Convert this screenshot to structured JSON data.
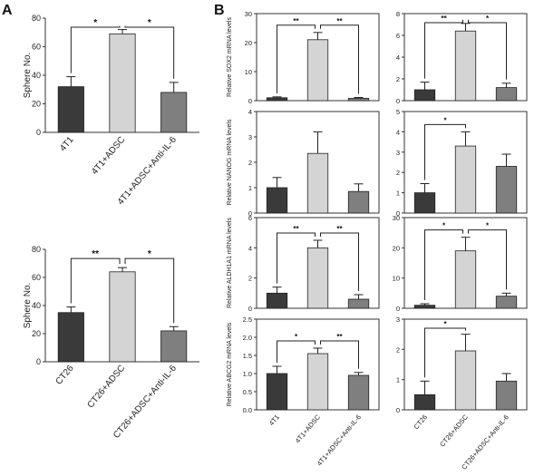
{
  "panel_labels": {
    "a": "A",
    "b": "B"
  },
  "colors": {
    "dark": "#3a3a3a",
    "light": "#d4d4d4",
    "medium": "#7f7f7f"
  },
  "chart_data": [
    {
      "id": "a_4t1",
      "type": "bar",
      "title": "",
      "xlabel": "",
      "ylabel": "Sphere No.",
      "categories": [
        "4T1",
        "4T1+ADSC",
        "4T1+ADSC+Anti-IL-6"
      ],
      "values": [
        32,
        69,
        28
      ],
      "errors": [
        7,
        3,
        7
      ],
      "ylim": [
        0,
        80
      ],
      "yticks": [
        0,
        20,
        40,
        60,
        80
      ],
      "significance": [
        {
          "from": 0,
          "to": 1,
          "label": "*"
        },
        {
          "from": 1,
          "to": 2,
          "label": "*"
        }
      ]
    },
    {
      "id": "a_ct26",
      "type": "bar",
      "title": "",
      "xlabel": "",
      "ylabel": "Sphere No.",
      "categories": [
        "CT26",
        "CT26+ADSC",
        "CT26+ADSC+Anti-IL-6"
      ],
      "values": [
        35,
        64,
        22
      ],
      "errors": [
        4,
        3,
        3
      ],
      "ylim": [
        0,
        80
      ],
      "yticks": [
        0,
        20,
        40,
        60,
        80
      ],
      "significance": [
        {
          "from": 0,
          "to": 1,
          "label": "**"
        },
        {
          "from": 1,
          "to": 2,
          "label": "*"
        }
      ]
    },
    {
      "id": "b_sox2_4t1",
      "type": "bar",
      "ylabel": "Relative SOX2 mRNA levels",
      "categories": [
        "4T1",
        "4T1+ADSC",
        "4T1+ADSC+Anti-IL-6"
      ],
      "values": [
        1,
        21,
        0.8
      ],
      "errors": [
        0.3,
        2.5,
        0.3
      ],
      "ylim": [
        0,
        30
      ],
      "yticks": [
        0,
        10,
        20,
        30
      ],
      "significance": [
        {
          "from": 0,
          "to": 1,
          "label": "**"
        },
        {
          "from": 1,
          "to": 2,
          "label": "**"
        }
      ]
    },
    {
      "id": "b_sox2_ct26",
      "type": "bar",
      "ylabel": "",
      "categories": [
        "CT26",
        "CT26+ADSC",
        "CT26+ADSC+Anti-IL-6"
      ],
      "values": [
        1,
        6.4,
        1.2
      ],
      "errors": [
        0.7,
        0.7,
        0.4
      ],
      "ylim": [
        0,
        8
      ],
      "yticks": [
        0,
        2,
        4,
        6,
        8
      ],
      "significance": [
        {
          "from": 0,
          "to": 1,
          "label": "**"
        },
        {
          "from": 1,
          "to": 2,
          "label": "*"
        }
      ]
    },
    {
      "id": "b_nanog_4t1",
      "type": "bar",
      "ylabel": "Relative NANOG mRNA levels",
      "categories": [
        "4T1",
        "4T1+ADSC",
        "4T1+ADSC+Anti-IL-6"
      ],
      "values": [
        1,
        2.35,
        0.85
      ],
      "errors": [
        0.4,
        0.85,
        0.3
      ],
      "ylim": [
        0,
        4
      ],
      "yticks": [
        0,
        1,
        2,
        3,
        4
      ],
      "significance": []
    },
    {
      "id": "b_nanog_ct26",
      "type": "bar",
      "ylabel": "",
      "categories": [
        "CT26",
        "CT26+ADSC",
        "CT26+ADSC+Anti-IL-6"
      ],
      "values": [
        1,
        3.3,
        2.3
      ],
      "errors": [
        0.45,
        0.7,
        0.6
      ],
      "ylim": [
        0,
        5
      ],
      "yticks": [
        0,
        1,
        2,
        3,
        4,
        5
      ],
      "significance": [
        {
          "from": 0,
          "to": 1,
          "label": "*"
        }
      ]
    },
    {
      "id": "b_aldh_4t1",
      "type": "bar",
      "ylabel": "Relative ALDH1A1 mRNA levels",
      "categories": [
        "4T1",
        "4T1+ADSC",
        "4T1+ADSC+Anti-IL-6"
      ],
      "values": [
        1,
        4,
        0.6
      ],
      "errors": [
        0.4,
        0.5,
        0.3
      ],
      "ylim": [
        0,
        6
      ],
      "yticks": [
        0,
        2,
        4,
        6
      ],
      "significance": [
        {
          "from": 0,
          "to": 1,
          "label": "**"
        },
        {
          "from": 1,
          "to": 2,
          "label": "**"
        }
      ]
    },
    {
      "id": "b_aldh_ct26",
      "type": "bar",
      "ylabel": "",
      "categories": [
        "CT26",
        "CT26+ADSC",
        "CT26+ADSC+Anti-IL-6"
      ],
      "values": [
        1,
        19,
        4
      ],
      "errors": [
        0.5,
        4.5,
        1
      ],
      "ylim": [
        0,
        30
      ],
      "yticks": [
        0,
        10,
        20,
        30
      ],
      "significance": [
        {
          "from": 0,
          "to": 1,
          "label": "*"
        },
        {
          "from": 1,
          "to": 2,
          "label": "*"
        }
      ]
    },
    {
      "id": "b_abcg2_4t1",
      "type": "bar",
      "ylabel": "Relative ABCG2 mRNA levels",
      "categories": [
        "4T1",
        "4T1+ADSC",
        "4T1+ADSC+Anti-IL-6"
      ],
      "values": [
        1,
        1.55,
        0.95
      ],
      "errors": [
        0.2,
        0.15,
        0.08
      ],
      "ylim": [
        0,
        2.5
      ],
      "yticks": [
        0,
        0.5,
        1,
        1.5,
        2,
        2.5
      ],
      "yticklabels": [
        "0.0",
        "0.5",
        "1.0",
        "1.5",
        "2.0",
        "2.5"
      ],
      "significance": [
        {
          "from": 0,
          "to": 1,
          "label": "*"
        },
        {
          "from": 1,
          "to": 2,
          "label": "**"
        }
      ]
    },
    {
      "id": "b_abcg2_ct26",
      "type": "bar",
      "ylabel": "",
      "categories": [
        "CT26",
        "CT26+ADSC",
        "CT26+ADSC+Anti-IL-6"
      ],
      "values": [
        0.5,
        1.95,
        0.95
      ],
      "errors": [
        0.45,
        0.55,
        0.25
      ],
      "ylim": [
        0,
        3
      ],
      "yticks": [
        0,
        1,
        2,
        3
      ],
      "significance": [
        {
          "from": 0,
          "to": 1,
          "label": "*"
        }
      ]
    }
  ]
}
